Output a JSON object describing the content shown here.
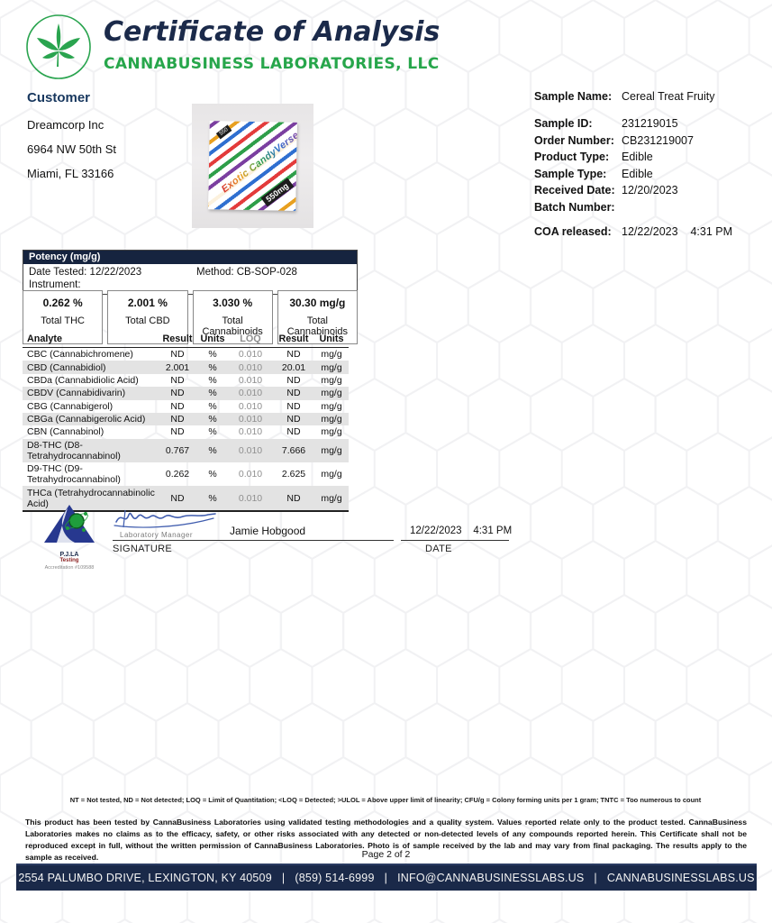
{
  "header": {
    "title": "Certificate of Analysis",
    "company": "CANNABUSINESS LABORATORIES, LLC",
    "accent_green": "#27a64b",
    "accent_navy": "#1b2a4a"
  },
  "customer": {
    "heading": "Customer",
    "name": "Dreamcorp Inc",
    "address1": "6964 NW 50th St",
    "address2": "Miami, FL  33166"
  },
  "product_photo": {
    "package_text": "Exotic CandyVerse",
    "package_dose": "550mg",
    "package_small_tag": "550"
  },
  "sample": {
    "name_label": "Sample Name:",
    "name_value": "Cereal Treat Fruity",
    "rows": [
      {
        "label": "Sample ID:",
        "value": "231219015"
      },
      {
        "label": "Order Number:",
        "value": "CB231219007"
      },
      {
        "label": "Product Type:",
        "value": "Edible"
      },
      {
        "label": "Sample Type:",
        "value": "Edible"
      },
      {
        "label": "Received Date:",
        "value": "12/20/2023"
      },
      {
        "label": "Batch Number:",
        "value": ""
      }
    ],
    "coa_label": "COA released:",
    "coa_value": "12/22/2023    4:31 PM"
  },
  "potency": {
    "panel_title": "Potency (mg/g)",
    "date_tested": "Date Tested: 12/22/2023",
    "method": "Method: CB-SOP-028",
    "instrument": "Instrument:",
    "summary": [
      {
        "value": "0.262 %",
        "label": "Total THC"
      },
      {
        "value": "2.001 %",
        "label": "Total CBD"
      },
      {
        "value": "3.030 %",
        "label": "Total Cannabinoids"
      },
      {
        "value": "30.30 mg/g",
        "label": "Total Cannabinoids"
      }
    ]
  },
  "table": {
    "headers": [
      "Analyte",
      "Result",
      "Units",
      "LOQ",
      "Result",
      "Units"
    ],
    "rows": [
      [
        "CBC (Cannabichromene)",
        "ND",
        "%",
        "0.010",
        "ND",
        "mg/g"
      ],
      [
        "CBD (Cannabidiol)",
        "2.001",
        "%",
        "0.010",
        "20.01",
        "mg/g"
      ],
      [
        "CBDa (Cannabidiolic Acid)",
        "ND",
        "%",
        "0.010",
        "ND",
        "mg/g"
      ],
      [
        "CBDV (Cannabidivarin)",
        "ND",
        "%",
        "0.010",
        "ND",
        "mg/g"
      ],
      [
        "CBG (Cannabigerol)",
        "ND",
        "%",
        "0.010",
        "ND",
        "mg/g"
      ],
      [
        "CBGa (Cannabigerolic Acid)",
        "ND",
        "%",
        "0.010",
        "ND",
        "mg/g"
      ],
      [
        "CBN (Cannabinol)",
        "ND",
        "%",
        "0.010",
        "ND",
        "mg/g"
      ],
      [
        "D8-THC (D8-Tetrahydrocannabinol)",
        "0.767",
        "%",
        "0.010",
        "7.666",
        "mg/g"
      ],
      [
        "D9-THC (D9-Tetrahydrocannabinol)",
        "0.262",
        "%",
        "0.010",
        "2.625",
        "mg/g"
      ],
      [
        "THCa (Tetrahydrocannabinolic Acid)",
        "ND",
        "%",
        "0.010",
        "ND",
        "mg/g"
      ]
    ]
  },
  "signature": {
    "pjla_line1": "P.J.LA",
    "pjla_line2": "Testing",
    "accreditation": "Accreditation #109588",
    "role": "Laboratory Manager",
    "printed_name": "Jamie Hobgood",
    "signature_label": "SIGNATURE",
    "date_value": "12/22/2023    4:31 PM",
    "date_label": "DATE"
  },
  "footer": {
    "legend": "NT = Not tested, ND = Not detected; LOQ = Limit of Quantitation; <LOQ = Detected; >ULOL = Above upper limit of linearity; CFU/g = Colony forming units per 1 gram; TNTC = Too numerous to count",
    "disclaimer": "This product has been tested by CannaBusiness Laboratories using validated testing methodologies and a quality system. Values reported relate only to the product tested.  CannaBusiness Laboratories makes no claims as to the efficacy, safety, or other risks associated with any detected or non-detected levels of any compounds reported herein.  This Certificate shall not be reproduced except in full, without the written permission of CannaBusiness Laboratories.  Photo is of sample received by the lab and may vary from final packaging. The results apply to the sample as received.",
    "page": "Page 2 of  2",
    "contact": "2554 PALUMBO DRIVE, LEXINGTON, KY 40509   |   (859) 514-6999   |   INFO@CANNABUSINESSLABS.US   |   CANNABUSINESSLABS.US"
  }
}
